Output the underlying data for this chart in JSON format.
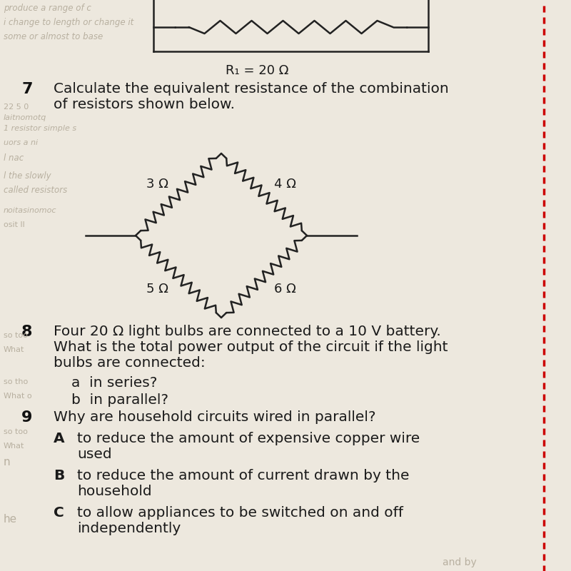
{
  "bg_color": "#ede8de",
  "top_section": {
    "resistor_label": "R₁ = 20 Ω",
    "resistor_label_fontsize": 13
  },
  "q7": {
    "number": "7",
    "text_line1": "Calculate the equivalent resistance of the combination",
    "text_line2": "of resistors shown below.",
    "fontsize": 14.5,
    "resistors": {
      "top_left": "3 Ω",
      "top_right": "4 Ω",
      "bottom_left": "5 Ω",
      "bottom_right": "6 Ω"
    }
  },
  "q8": {
    "number": "8",
    "text_line1": "Four 20 Ω light bulbs are connected to a 10 V battery.",
    "text_line2": "What is the total power output of the circuit if the light",
    "text_line3": "bulbs are connected:",
    "a_text": "a  in series?",
    "b_text": "b  in parallel?",
    "fontsize": 14.5
  },
  "q9": {
    "number": "9",
    "text": "Why are household circuits wired in parallel?",
    "A_label": "A",
    "A_text": "to reduce the amount of expensive copper wire",
    "A_text2": "used",
    "B_label": "B",
    "B_text": "to reduce the amount of current drawn by the",
    "B_text2": "household",
    "C_label": "C",
    "C_text": "to allow appliances to be switched on and off",
    "C_text2": "independently",
    "fontsize": 14.5
  },
  "dashed_line_color": "#cc0000",
  "text_color": "#1a1a1a",
  "ghost_text_color": "#b8b0a0",
  "line_color": "#222222",
  "bold_text_color": "#111111"
}
